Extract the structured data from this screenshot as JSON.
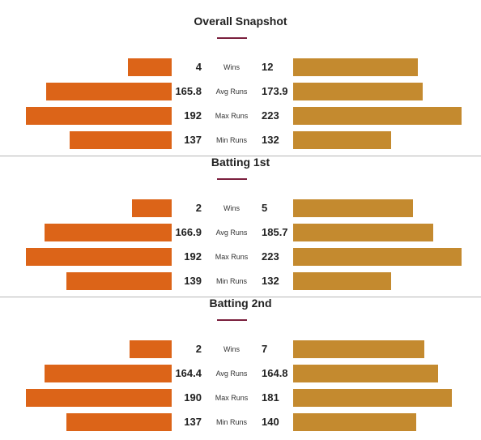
{
  "colors": {
    "left_team": "#dc6418",
    "right_team": "#c48a2f",
    "accent": "#7a1f3d"
  },
  "chart_data": [
    {
      "type": "bar",
      "title": "Overall Snapshot",
      "categories": [
        "Wins",
        "Avg Runs",
        "Max Runs",
        "Min Runs"
      ],
      "series": [
        {
          "values": [
            "4",
            "165.8",
            "192",
            "137"
          ]
        },
        {
          "values": [
            "12",
            "173.9",
            "223",
            "132"
          ]
        }
      ],
      "left_fill": [
        0.3,
        0.86,
        1.0,
        0.7
      ],
      "right_fill": [
        0.74,
        0.77,
        1.0,
        0.58
      ]
    },
    {
      "type": "bar",
      "title": "Batting 1st",
      "categories": [
        "Wins",
        "Avg Runs",
        "Max Runs",
        "Min Runs"
      ],
      "series": [
        {
          "values": [
            "2",
            "166.9",
            "192",
            "139"
          ]
        },
        {
          "values": [
            "5",
            "185.7",
            "223",
            "132"
          ]
        }
      ],
      "left_fill": [
        0.27,
        0.87,
        1.0,
        0.72
      ],
      "right_fill": [
        0.71,
        0.83,
        1.0,
        0.58
      ]
    },
    {
      "type": "bar",
      "title": "Batting 2nd",
      "categories": [
        "Wins",
        "Avg Runs",
        "Max Runs",
        "Min Runs"
      ],
      "series": [
        {
          "values": [
            "2",
            "164.4",
            "190",
            "137"
          ]
        },
        {
          "values": [
            "7",
            "164.8",
            "181",
            "140"
          ]
        }
      ],
      "left_fill": [
        0.29,
        0.87,
        1.0,
        0.72
      ],
      "right_fill": [
        0.78,
        0.86,
        0.94,
        0.73
      ]
    }
  ]
}
